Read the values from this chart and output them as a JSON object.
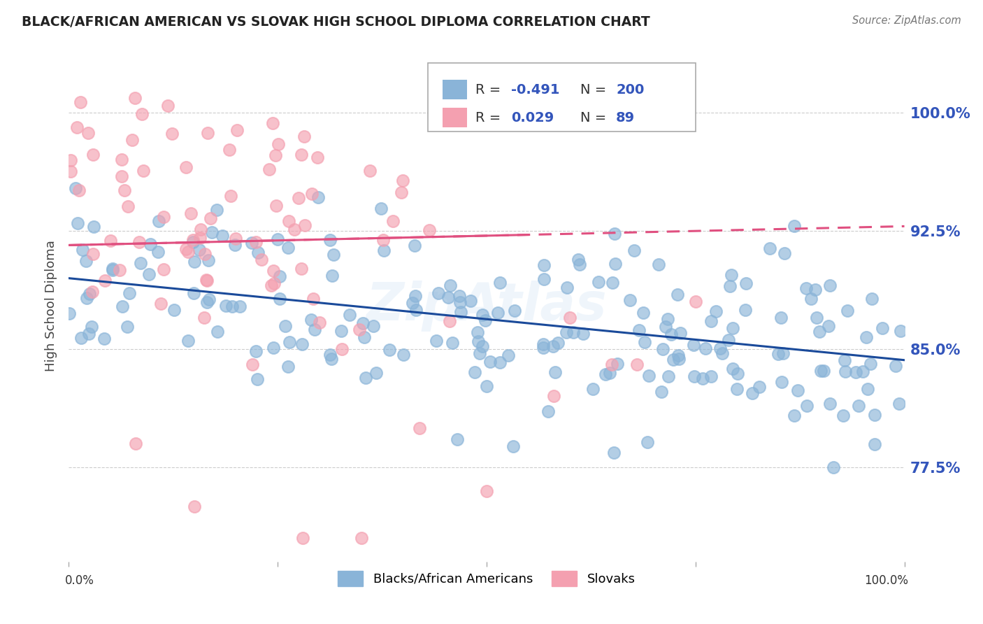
{
  "title": "BLACK/AFRICAN AMERICAN VS SLOVAK HIGH SCHOOL DIPLOMA CORRELATION CHART",
  "source": "Source: ZipAtlas.com",
  "ylabel": "High School Diploma",
  "xlim": [
    0.0,
    1.0
  ],
  "ylim": [
    0.715,
    1.04
  ],
  "yticks": [
    0.775,
    0.85,
    0.925,
    1.0
  ],
  "ytick_labels": [
    "77.5%",
    "85.0%",
    "92.5%",
    "100.0%"
  ],
  "blue_R": "-0.491",
  "blue_N": "200",
  "pink_R": "0.029",
  "pink_N": "89",
  "blue_color": "#8AB4D8",
  "pink_color": "#F4A0B0",
  "blue_line_color": "#1A4A9A",
  "pink_line_color": "#E05080",
  "legend_blue_label": "Blacks/African Americans",
  "legend_pink_label": "Slovaks",
  "blue_line_y_start": 0.895,
  "blue_line_y_end": 0.843,
  "pink_line_y_start": 0.916,
  "pink_line_y_end": 0.928,
  "watermark": "ZipAtlas",
  "background_color": "#FFFFFF",
  "grid_color": "#CCCCCC",
  "ylabel_color": "#444444",
  "ytick_color": "#3355BB",
  "title_color": "#222222",
  "source_color": "#777777"
}
